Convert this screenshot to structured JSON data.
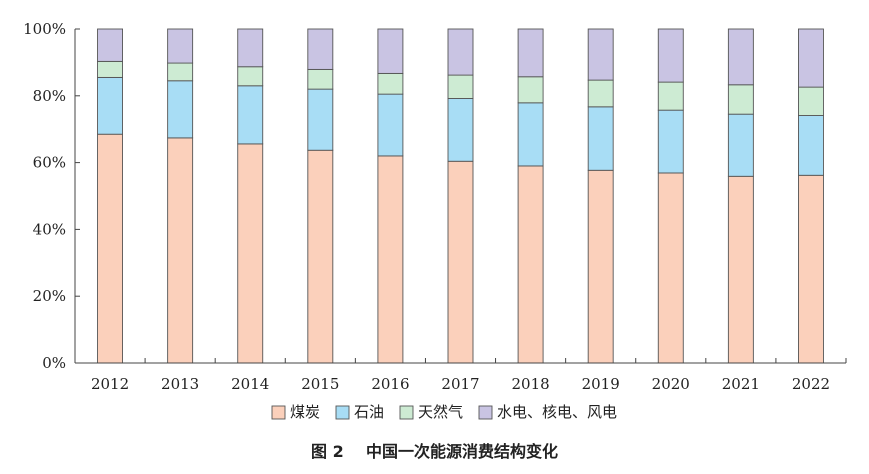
{
  "caption": "图 2    中国一次能源消费结构变化",
  "chart_data": {
    "type": "bar",
    "stacked": true,
    "normalized": true,
    "categories": [
      "2012",
      "2013",
      "2014",
      "2015",
      "2016",
      "2017",
      "2018",
      "2019",
      "2020",
      "2021",
      "2022"
    ],
    "series": [
      {
        "name": "煤炭",
        "color": "#fbd0bb",
        "values": [
          68.5,
          67.4,
          65.6,
          63.7,
          62.0,
          60.4,
          59.0,
          57.7,
          56.9,
          55.9,
          56.2
        ]
      },
      {
        "name": "石油",
        "color": "#a8ddf5",
        "values": [
          17.0,
          17.1,
          17.4,
          18.3,
          18.5,
          18.8,
          18.9,
          19.0,
          18.8,
          18.6,
          17.9
        ]
      },
      {
        "name": "天然气",
        "color": "#cdebd3",
        "values": [
          4.8,
          5.3,
          5.7,
          5.9,
          6.2,
          7.0,
          7.8,
          8.0,
          8.4,
          8.8,
          8.5
        ]
      },
      {
        "name": "水电、核电、风电",
        "color": "#c9c4e3",
        "values": [
          9.7,
          10.2,
          11.3,
          12.1,
          13.3,
          13.8,
          14.3,
          15.3,
          15.9,
          16.7,
          17.4
        ]
      }
    ],
    "ylim": [
      0,
      100
    ],
    "yticks": [
      "0%",
      "20%",
      "40%",
      "60%",
      "80%",
      "100%"
    ],
    "grid": false,
    "legend_position": "bottom"
  }
}
